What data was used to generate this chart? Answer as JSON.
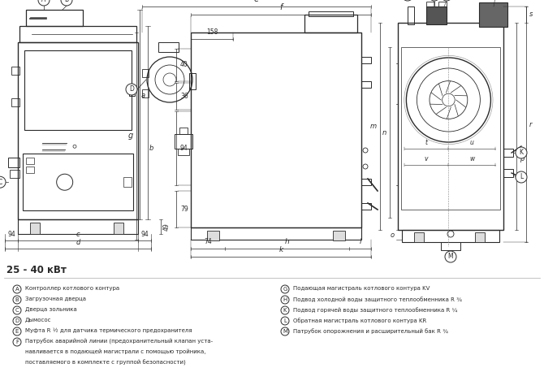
{
  "title": "25 - 40 кВт",
  "bg_color": "#ffffff",
  "line_color": "#2a2a2a",
  "legend_left": [
    [
      "A",
      "Контроллер котлового контура"
    ],
    [
      "B",
      "Загрузочная дверца"
    ],
    [
      "C",
      "Дверца зольника"
    ],
    [
      "D",
      "Дымосос"
    ],
    [
      "E",
      "Муфта R ½ для датчика термического предохранителя"
    ],
    [
      "F",
      "Патрубок аварийной линии (предохранительный клапан уста-\nнавливается в подающей магистрали с помощью тройника,\nпоставляемого в комплекте с группой безопасности)"
    ]
  ],
  "legend_right": [
    [
      "G",
      "Подающая магистраль котлового контура KV"
    ],
    [
      "H",
      "Подвод холодной воды защитного теплообменника R ¾"
    ],
    [
      "K",
      "Подвод горячей воды защитного теплообменника R ¼"
    ],
    [
      "L",
      "Обратная магистраль котлового контура KR"
    ],
    [
      "M",
      "Патрубок опорожнения и расширительный бак R ¾"
    ]
  ]
}
